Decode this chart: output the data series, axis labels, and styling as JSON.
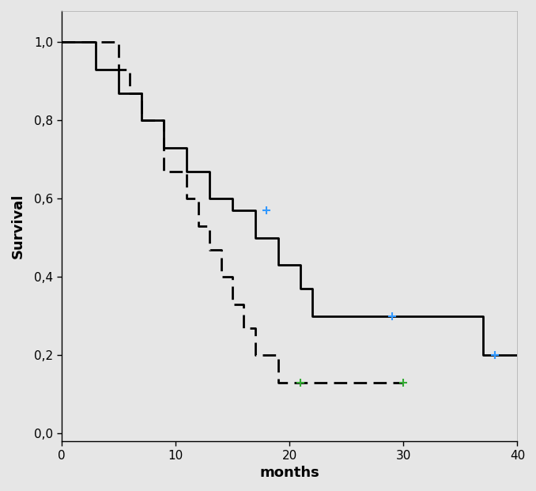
{
  "background_color": "#e6e6e6",
  "xlabel": "months",
  "ylabel": "Survival",
  "xlim": [
    0,
    40
  ],
  "ylim": [
    -0.02,
    1.08
  ],
  "xticks": [
    0,
    10,
    20,
    30,
    40
  ],
  "yticks": [
    0.0,
    0.2,
    0.4,
    0.6,
    0.8,
    1.0
  ],
  "ytick_labels": [
    "0,0",
    "0,2",
    "0,4",
    "0,6",
    "0,8",
    "1,0"
  ],
  "solid_line": {
    "x": [
      0,
      3,
      3,
      5,
      5,
      7,
      7,
      9,
      9,
      11,
      11,
      13,
      13,
      15,
      15,
      17,
      17,
      19,
      19,
      21,
      21,
      22,
      22,
      37,
      37,
      38,
      38,
      40
    ],
    "y": [
      1.0,
      1.0,
      0.93,
      0.93,
      0.87,
      0.87,
      0.8,
      0.8,
      0.73,
      0.73,
      0.67,
      0.67,
      0.6,
      0.6,
      0.57,
      0.57,
      0.5,
      0.5,
      0.43,
      0.43,
      0.37,
      0.37,
      0.3,
      0.3,
      0.2,
      0.2,
      0.2,
      0.2
    ],
    "censor_times": [
      18,
      29,
      38,
      38
    ],
    "censor_surv": [
      0.57,
      0.3,
      0.2,
      0.2
    ],
    "censor_colors": [
      "#3399ff",
      "#3399ff",
      "#3399ff",
      "#3399ff"
    ]
  },
  "dashed_line": {
    "x": [
      0,
      5,
      5,
      6,
      6,
      7,
      7,
      9,
      9,
      11,
      11,
      12,
      12,
      13,
      13,
      14,
      14,
      15,
      15,
      16,
      16,
      17,
      17,
      19,
      19,
      20,
      20,
      21,
      21,
      30,
      30
    ],
    "y": [
      1.0,
      1.0,
      0.93,
      0.93,
      0.87,
      0.87,
      0.8,
      0.8,
      0.67,
      0.67,
      0.6,
      0.6,
      0.53,
      0.53,
      0.47,
      0.47,
      0.4,
      0.4,
      0.33,
      0.33,
      0.27,
      0.27,
      0.2,
      0.2,
      0.13,
      0.13,
      0.13,
      0.13,
      0.13,
      0.13,
      0.13
    ],
    "censor_times": [
      21,
      30
    ],
    "censor_surv": [
      0.13,
      0.13
    ],
    "censor_colors": [
      "#33aa33",
      "#33aa33"
    ]
  },
  "line_color": "#000000",
  "line_width": 2.0,
  "font_size_label": 13,
  "font_size_tick": 11
}
